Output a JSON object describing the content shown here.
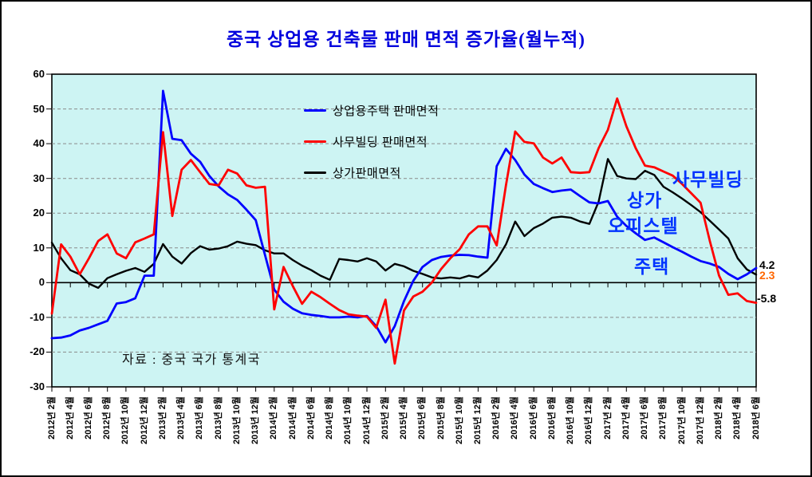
{
  "figure": {
    "title": "중국 상업용 건축물 판매 면적 증가율(월누적)",
    "title_color": "#0000DD",
    "plot_bg": "#CDF4F3",
    "grid_color": "#8A8A8A",
    "axis_color": "#000000",
    "source_note": "자료 : 중국 국가 통계국"
  },
  "legend": {
    "items": [
      {
        "label": "상업용주택 판매면적",
        "color": "#0000FF"
      },
      {
        "label": "사무빌딩 판매면적",
        "color": "#FF0000"
      },
      {
        "label": "상가판매면적",
        "color": "#000000"
      }
    ]
  },
  "annotations": {
    "office_label": {
      "text": "사무빌딩",
      "color": "#0033FF"
    },
    "retail_label": {
      "text": "상가",
      "color": "#0033FF"
    },
    "officetel_label": {
      "text": "오피스텔",
      "color": "#0033FF"
    },
    "housing_label": {
      "text": "주택",
      "color": "#0033FF"
    },
    "end_values": [
      {
        "text": "4.2",
        "color": "#000000"
      },
      {
        "text": "2.3",
        "color": "#FF6600"
      },
      {
        "text": "-5.8",
        "color": "#000000"
      }
    ]
  },
  "chart_data": {
    "type": "line",
    "title": "중국 상업용 건축물 판매 면적 증가율(월누적)",
    "x_start": "2012-02",
    "x_end": "2018-06",
    "x_step_months": 1,
    "ylim": [
      -30,
      60
    ],
    "y_ticks": [
      60,
      50,
      40,
      30,
      20,
      10,
      0,
      -10,
      -20,
      -30
    ],
    "grid_values": [
      50,
      40,
      30,
      20,
      10,
      -10,
      -20
    ],
    "grid_on": true,
    "legend_position": "inside-top-left-of-plot",
    "x_tick_labels": [
      "2012년 2월",
      "2012년 4월",
      "2012년 6월",
      "2012년 8월",
      "2012년 10월",
      "2012년 12월",
      "2013년 2월",
      "2013년 4월",
      "2013년 6월",
      "2013년 8월",
      "2013년 10월",
      "2013년 12월",
      "2014년 2월",
      "2014년 4월",
      "2014년 6월",
      "2014년 8월",
      "2014년 10월",
      "2014년 12월",
      "2015년 2월",
      "2015년 4월",
      "2015년 6월",
      "2015년 8월",
      "2015년 10월",
      "2015년 12월",
      "2016년 2월",
      "2016년 4월",
      "2016년 6월",
      "2016년 8월",
      "2016년 10월",
      "2016년 12월",
      "2017년 2월",
      "2017년 4월",
      "2017년 6월",
      "2017년 8월",
      "2017년 10월",
      "2017년 12월",
      "2018년 2월",
      "2018년 4월",
      "2018년 6월"
    ],
    "series": [
      {
        "name": "상업용주택 판매면적",
        "key": "residential",
        "color": "#0000FF",
        "width": 2.8,
        "end_value": 4.2,
        "values": [
          -16.0,
          -15.8,
          -15.2,
          -13.8,
          -13.0,
          -12.0,
          -11.0,
          -6.0,
          -5.6,
          -4.5,
          2.0,
          2.0,
          55.2,
          41.4,
          41.0,
          37.1,
          34.8,
          30.7,
          27.7,
          25.4,
          23.8,
          21.0,
          18.0,
          8.0,
          -2.0,
          -5.5,
          -7.5,
          -8.8,
          -9.3,
          -9.6,
          -10.0,
          -10.0,
          -9.8,
          -10.0,
          -9.6,
          -12.5,
          -17.2,
          -12.5,
          -5.3,
          0.5,
          4.5,
          6.5,
          7.4,
          7.8,
          8.0,
          7.9,
          7.5,
          7.2,
          33.5,
          38.5,
          35.3,
          31.1,
          28.4,
          27.2,
          26.1,
          26.5,
          26.8,
          24.9,
          23.1,
          22.8,
          23.5,
          19.0,
          16.3,
          14.2,
          12.3,
          13.0,
          11.6,
          10.2,
          8.9,
          7.5,
          6.2,
          5.5,
          4.5,
          2.5,
          1.0,
          2.4,
          4.2
        ]
      },
      {
        "name": "사무빌딩 판매면적",
        "key": "office",
        "color": "#FF0000",
        "width": 2.8,
        "end_value": -5.8,
        "values": [
          -8.9,
          11.0,
          7.5,
          2.4,
          7.0,
          12.0,
          13.9,
          8.4,
          7.0,
          11.6,
          12.7,
          13.9,
          43.3,
          19.2,
          32.5,
          35.3,
          31.8,
          28.4,
          28.0,
          32.5,
          31.4,
          28.0,
          27.3,
          27.6,
          -7.7,
          4.5,
          -1.0,
          -6.1,
          -2.6,
          -4.2,
          -6.1,
          -7.9,
          -9.1,
          -9.5,
          -9.8,
          -13.0,
          -4.9,
          -23.3,
          -8.0,
          -4.0,
          -2.6,
          0.0,
          3.9,
          7.0,
          9.6,
          13.9,
          16.2,
          16.2,
          10.7,
          28.0,
          43.5,
          40.5,
          40.1,
          36.0,
          34.3,
          36.0,
          31.8,
          31.6,
          31.8,
          38.7,
          44.0,
          53.0,
          45.0,
          38.7,
          33.7,
          33.2,
          32.0,
          30.8,
          28.4,
          25.7,
          23.0,
          12.0,
          2.0,
          -3.5,
          -3.1,
          -5.3,
          -5.8
        ]
      },
      {
        "name": "상가판매면적",
        "key": "retail",
        "color": "#000000",
        "width": 2.4,
        "end_value": 2.3,
        "values": [
          11.5,
          7.0,
          3.6,
          2.4,
          -0.3,
          -1.5,
          1.3,
          2.4,
          3.4,
          4.2,
          3.1,
          5.4,
          11.1,
          7.5,
          5.5,
          8.5,
          10.5,
          9.5,
          9.8,
          10.5,
          11.8,
          11.2,
          10.8,
          9.3,
          8.4,
          8.4,
          6.5,
          4.9,
          3.6,
          2.0,
          0.8,
          6.8,
          6.5,
          6.1,
          7.0,
          6.1,
          3.5,
          5.4,
          4.7,
          3.4,
          2.5,
          1.5,
          1.2,
          1.5,
          1.2,
          2.0,
          1.5,
          3.5,
          6.5,
          11.0,
          17.6,
          13.4,
          15.7,
          17.0,
          18.7,
          19.0,
          18.7,
          17.6,
          16.9,
          23.3,
          35.6,
          30.7,
          30.0,
          29.8,
          32.2,
          31.0,
          27.6,
          26.0,
          24.2,
          22.3,
          20.3,
          17.8,
          15.3,
          12.7,
          7.0,
          3.8,
          2.3
        ]
      }
    ]
  }
}
